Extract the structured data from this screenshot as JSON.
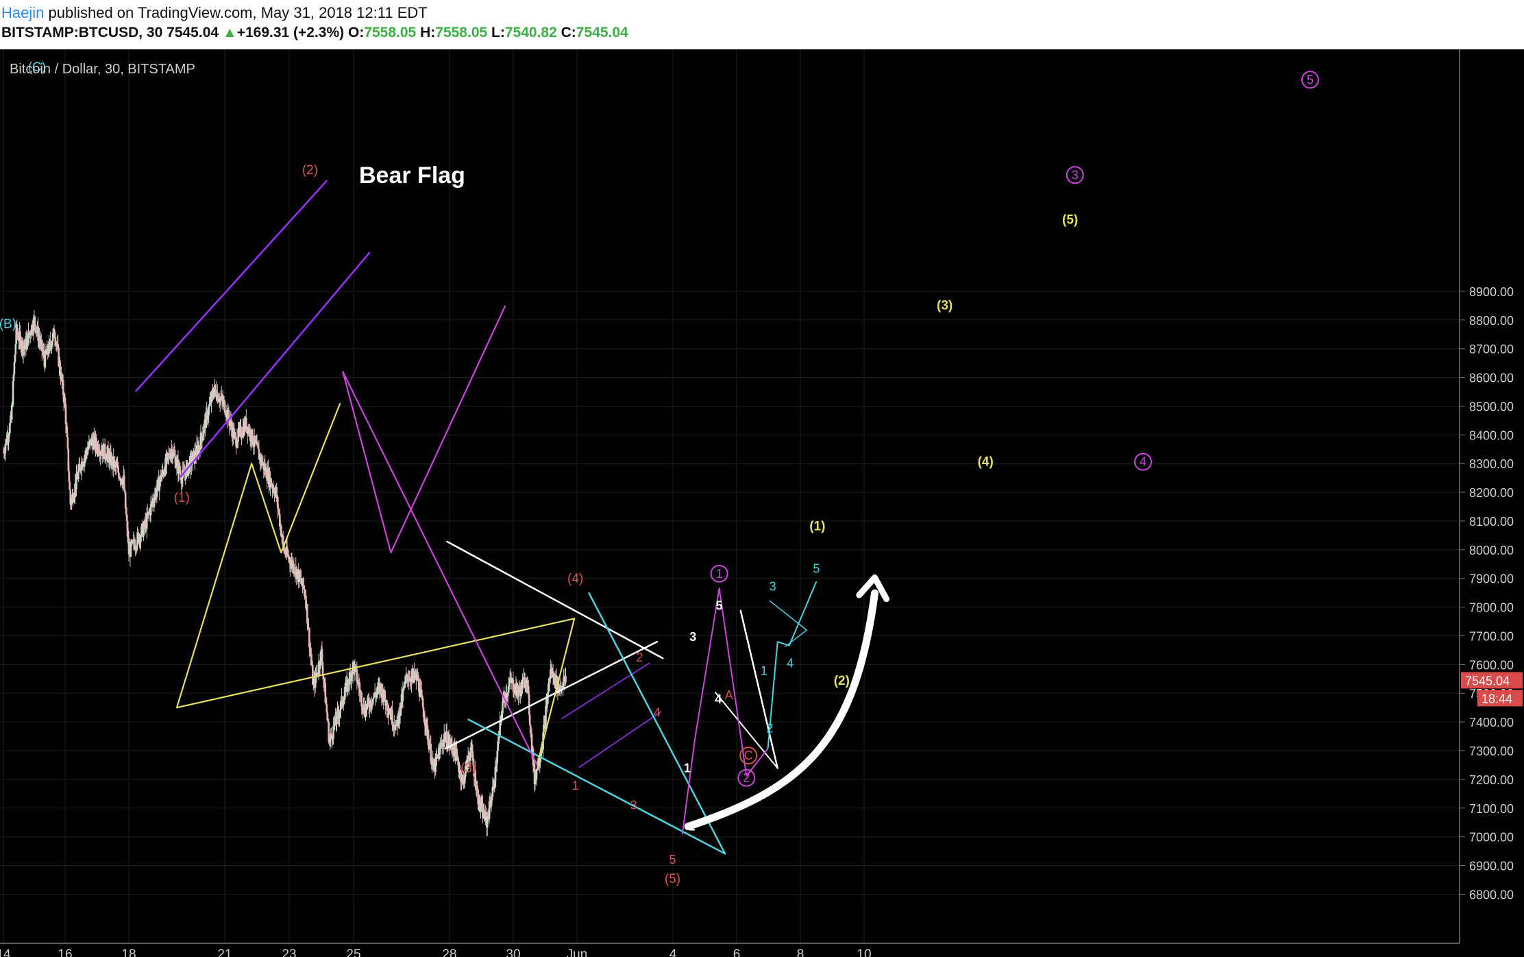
{
  "header": {
    "author": "Haejin",
    "published_text": "published on TradingView.com, May 31, 2018 12:11 EDT",
    "symbol": "BITSTAMP:BTCUSD, 30",
    "last": "7545.04",
    "change": "+169.31 (+2.3%)",
    "open_label": "O:",
    "open": "7558.05",
    "high_label": "H:",
    "high": "7558.05",
    "low_label": "L:",
    "low": "7540.82",
    "close_label": "C:",
    "close": "7545.04"
  },
  "colors": {
    "background": "#000000",
    "grid": "#1e1e1e",
    "axis_text": "#cfcfcf",
    "candle_up": "#c9d8c9",
    "candle_down": "#e6b8b8",
    "purple": "#9b30ff",
    "magenta": "#cc44dd",
    "cyan": "#4dd2e0",
    "white": "#ffffff",
    "yellow": "#e8e060",
    "red": "#d9534f",
    "price_tag": "#d94a4a"
  },
  "chart_data": {
    "type": "line",
    "title": "Bitcoin / Dollar, 30, BITSTAMP",
    "annotation_title": "Bear Flag",
    "xlabel": "",
    "ylabel": "",
    "ylim": [
      6800,
      8950
    ],
    "x_ticks": [
      "14",
      "16",
      "18",
      "21",
      "23",
      "25",
      "28",
      "30",
      "Jun",
      "4",
      "6",
      "8",
      "10"
    ],
    "y_ticks": [
      "8900.00",
      "8800.00",
      "8700.00",
      "8600.00",
      "8500.00",
      "8400.00",
      "8300.00",
      "8200.00",
      "8100.00",
      "8000.00",
      "7900.00",
      "7800.00",
      "7700.00",
      "7600.00",
      "7500.00",
      "7400.00",
      "7300.00",
      "7200.00",
      "7100.00",
      "7000.00",
      "6900.00",
      "6800.00"
    ],
    "current_price": "7545.04",
    "countdown": "18:44",
    "price_path": [
      {
        "x": "May 14 00:00",
        "y": 8340
      },
      {
        "x": "May 14 06:00",
        "y": 8450
      },
      {
        "x": "May 14 10:00",
        "y": 8760
      },
      {
        "x": "May 14 16:00",
        "y": 8700
      },
      {
        "x": "May 15 00:00",
        "y": 8800
      },
      {
        "x": "May 15 08:00",
        "y": 8660
      },
      {
        "x": "May 15 16:00",
        "y": 8760
      },
      {
        "x": "May 16 00:00",
        "y": 8500
      },
      {
        "x": "May 16 04:00",
        "y": 8160
      },
      {
        "x": "May 16 12:00",
        "y": 8300
      },
      {
        "x": "May 16 20:00",
        "y": 8380
      },
      {
        "x": "May 17 08:00",
        "y": 8330
      },
      {
        "x": "May 17 20:00",
        "y": 8240
      },
      {
        "x": "May 18 00:00",
        "y": 7990
      },
      {
        "x": "May 18 12:00",
        "y": 8080
      },
      {
        "x": "May 18 20:00",
        "y": 8200
      },
      {
        "x": "May 19 08:00",
        "y": 8350
      },
      {
        "x": "May 19 16:00",
        "y": 8250
      },
      {
        "x": "May 20 04:00",
        "y": 8350
      },
      {
        "x": "May 20 16:00",
        "y": 8560
      },
      {
        "x": "May 21 00:00",
        "y": 8500
      },
      {
        "x": "May 21 08:00",
        "y": 8380
      },
      {
        "x": "May 21 16:00",
        "y": 8440
      },
      {
        "x": "May 22 04:00",
        "y": 8300
      },
      {
        "x": "May 22 14:00",
        "y": 8200
      },
      {
        "x": "May 22 20:00",
        "y": 8000
      },
      {
        "x": "May 23 06:00",
        "y": 7920
      },
      {
        "x": "May 23 12:00",
        "y": 7850
      },
      {
        "x": "May 23 18:00",
        "y": 7520
      },
      {
        "x": "May 24 00:00",
        "y": 7640
      },
      {
        "x": "May 24 06:00",
        "y": 7330
      },
      {
        "x": "May 24 16:00",
        "y": 7480
      },
      {
        "x": "May 25 00:00",
        "y": 7600
      },
      {
        "x": "May 25 08:00",
        "y": 7440
      },
      {
        "x": "May 25 20:00",
        "y": 7520
      },
      {
        "x": "May 26 08:00",
        "y": 7380
      },
      {
        "x": "May 26 16:00",
        "y": 7560
      },
      {
        "x": "May 27 00:00",
        "y": 7550
      },
      {
        "x": "May 27 06:00",
        "y": 7400
      },
      {
        "x": "May 27 12:00",
        "y": 7230
      },
      {
        "x": "May 27 20:00",
        "y": 7350
      },
      {
        "x": "May 28 04:00",
        "y": 7300
      },
      {
        "x": "May 28 10:00",
        "y": 7190
      },
      {
        "x": "May 28 16:00",
        "y": 7310
      },
      {
        "x": "May 28 22:00",
        "y": 7120
      },
      {
        "x": "May 29 04:00",
        "y": 7050
      },
      {
        "x": "May 29 10:00",
        "y": 7200
      },
      {
        "x": "May 29 16:00",
        "y": 7470
      },
      {
        "x": "May 29 22:00",
        "y": 7540
      },
      {
        "x": "May 30 04:00",
        "y": 7500
      },
      {
        "x": "May 30 10:00",
        "y": 7560
      },
      {
        "x": "May 30 16:00",
        "y": 7200
      },
      {
        "x": "May 30 22:00",
        "y": 7330
      },
      {
        "x": "May 31 04:00",
        "y": 7580
      },
      {
        "x": "May 31 10:00",
        "y": 7520
      },
      {
        "x": "May 31 16:00",
        "y": 7545
      }
    ],
    "wave_labels": [
      {
        "text": "(C)",
        "color": "cyan"
      },
      {
        "text": "(B)",
        "color": "cyan"
      },
      {
        "text": "(2)",
        "color": "red"
      },
      {
        "text": "(1)",
        "color": "red"
      },
      {
        "text": "(3)",
        "color": "red"
      },
      {
        "text": "(4)",
        "color": "red"
      },
      {
        "text": "(5)",
        "color": "red"
      },
      {
        "text": "5",
        "color": "red"
      },
      {
        "text": "1",
        "color": "red"
      },
      {
        "text": "2",
        "color": "red"
      },
      {
        "text": "3",
        "color": "red"
      },
      {
        "text": "4",
        "color": "red"
      },
      {
        "text": "A",
        "color": "red"
      },
      {
        "text": "C",
        "color": "red"
      },
      {
        "text": "1",
        "color": "magenta"
      },
      {
        "text": "2",
        "color": "magenta"
      },
      {
        "text": "3",
        "color": "magenta"
      },
      {
        "text": "4",
        "color": "magenta"
      },
      {
        "text": "5",
        "color": "magenta"
      },
      {
        "text": "(1)",
        "color": "yellow"
      },
      {
        "text": "(2)",
        "color": "yellow"
      },
      {
        "text": "(3)",
        "color": "yellow"
      },
      {
        "text": "(4)",
        "color": "yellow"
      },
      {
        "text": "(5)",
        "color": "yellow"
      },
      {
        "text": "1",
        "color": "white"
      },
      {
        "text": "2",
        "color": "white"
      },
      {
        "text": "3",
        "color": "white"
      },
      {
        "text": "4",
        "color": "white"
      },
      {
        "text": "5",
        "color": "white"
      },
      {
        "text": "1",
        "color": "cyan"
      },
      {
        "text": "2",
        "color": "cyan"
      },
      {
        "text": "3",
        "color": "cyan"
      },
      {
        "text": "4",
        "color": "cyan"
      },
      {
        "text": "5",
        "color": "cyan"
      }
    ],
    "projections": [
      {
        "name": "yellow",
        "points": [
          {
            "x": "May 30 18:00",
            "y": 7250
          },
          {
            "x": "May 31 22:00",
            "y": 7760
          },
          {
            "x": "Jun 1 12:00",
            "y": 7450
          },
          {
            "x": "Jun 3 20:00",
            "y": 8300
          },
          {
            "x": "Jun 4 18:00",
            "y": 7990
          },
          {
            "x": "Jun 6 14:00",
            "y": 8510
          }
        ]
      },
      {
        "name": "magenta",
        "points": [
          {
            "x": "May 30 18:00",
            "y": 7250
          },
          {
            "x": "Jun 6 16:00",
            "y": 8620
          },
          {
            "x": "Jun 8 04:00",
            "y": 7990
          },
          {
            "x": "Jun 11 18:00",
            "y": 8850
          }
        ]
      }
    ]
  }
}
